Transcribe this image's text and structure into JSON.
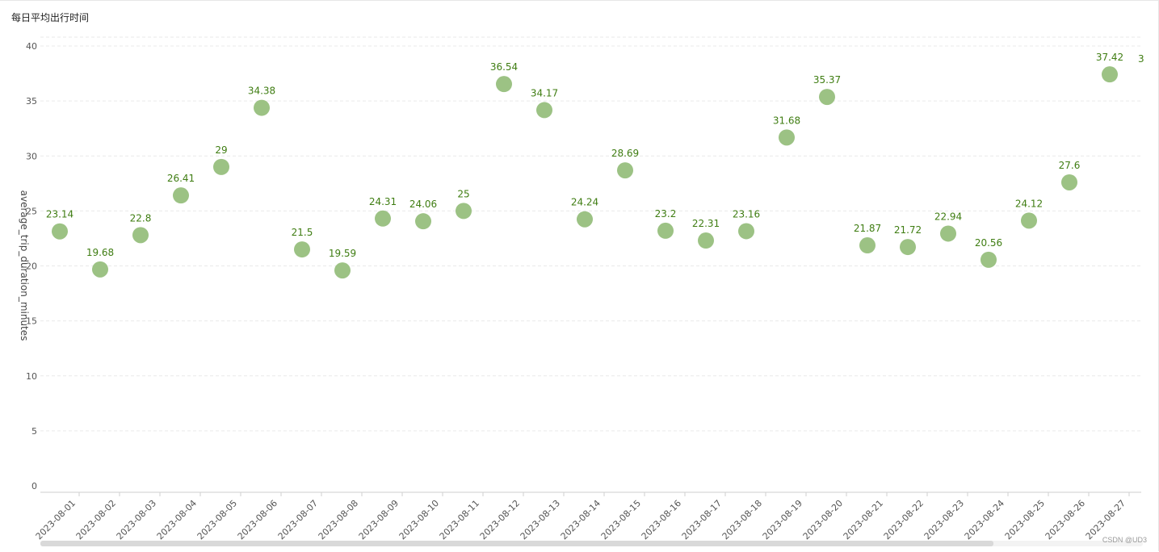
{
  "title": "每日平均出行时间",
  "watermark": "CSDN @UD3",
  "colors": {
    "point": "#9cc284",
    "label": "#3f7d12"
  },
  "chart_data": {
    "type": "scatter",
    "title": "每日平均出行时间",
    "xlabel": "",
    "ylabel": "average_trip_duration_minutes",
    "ylim": [
      0,
      40
    ],
    "yticks": [
      0,
      5,
      10,
      15,
      20,
      25,
      30,
      35,
      40
    ],
    "grid": true,
    "categories": [
      "2023-08-01",
      "2023-08-02",
      "2023-08-03",
      "2023-08-04",
      "2023-08-05",
      "2023-08-06",
      "2023-08-07",
      "2023-08-08",
      "2023-08-09",
      "2023-08-10",
      "2023-08-11",
      "2023-08-12",
      "2023-08-13",
      "2023-08-14",
      "2023-08-15",
      "2023-08-16",
      "2023-08-17",
      "2023-08-18",
      "2023-08-19",
      "2023-08-20",
      "2023-08-21",
      "2023-08-22",
      "2023-08-23",
      "2023-08-24",
      "2023-08-25",
      "2023-08-26",
      "2023-08-27"
    ],
    "values": [
      23.14,
      19.68,
      22.8,
      26.41,
      29,
      34.38,
      21.5,
      19.59,
      24.31,
      24.06,
      25,
      36.54,
      34.17,
      24.24,
      28.69,
      23.2,
      22.31,
      23.16,
      31.68,
      35.37,
      21.87,
      21.72,
      22.94,
      20.56,
      24.12,
      27.6,
      37.42
    ],
    "cut_off_label": "3"
  }
}
